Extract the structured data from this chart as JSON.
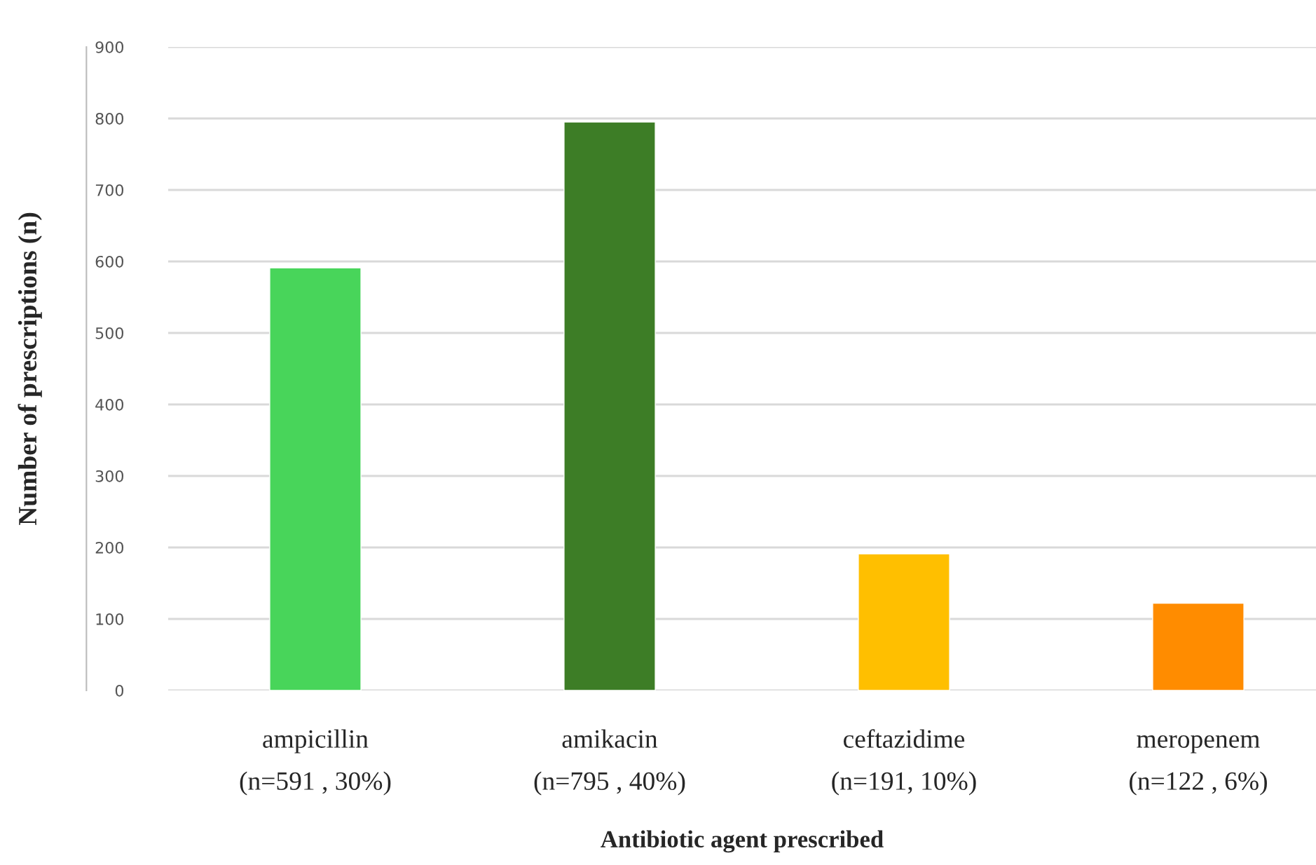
{
  "chart_data": {
    "type": "bar",
    "xlabel": "Antibiotic agent prescribed",
    "ylabel": "Number of prescriptions (n)",
    "categories": [
      "ampicillin\n(n=591 , 30%)",
      "amikacin\n(n=795 , 40%)",
      "ceftazidime\n(n=191, 10%)",
      "meropenem\n(n=122 , 6%)"
    ],
    "values": [
      591,
      795,
      191,
      122
    ],
    "colors": [
      "#48d55a",
      "#3d7d26",
      "#ffbf00",
      "#ff8c00"
    ],
    "ylim": [
      0,
      900
    ],
    "yticks": [
      0,
      100,
      200,
      300,
      400,
      500,
      600,
      700,
      800,
      900
    ],
    "grid": "y",
    "legend": false
  }
}
